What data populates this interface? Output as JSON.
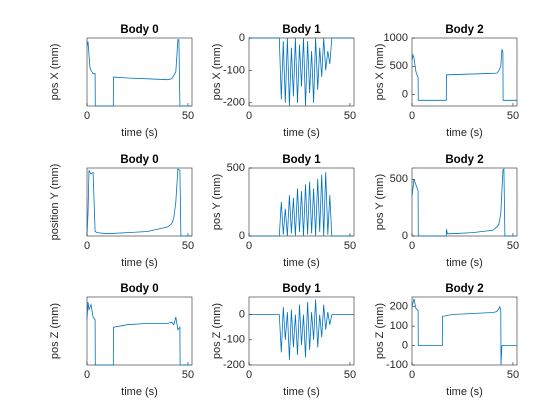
{
  "chart_data": [
    {
      "type": "line",
      "title": "Body 0",
      "x_label": "time (s)",
      "y_label": "pos X (mm)",
      "xlim": [
        0,
        52
      ],
      "xticks": [
        0,
        50
      ],
      "ylim": [
        0,
        800
      ],
      "color": "#0072bd",
      "x": [
        0,
        0.5,
        1,
        1.5,
        2,
        3,
        4,
        4.1,
        13,
        13.1,
        20,
        30,
        40,
        42,
        44,
        45,
        45.5,
        46,
        52
      ],
      "values": [
        700,
        760,
        600,
        450,
        420,
        380,
        380,
        0,
        0,
        340,
        330,
        320,
        310,
        320,
        400,
        780,
        780,
        0,
        0
      ]
    },
    {
      "type": "line",
      "title": "Body 1",
      "x_label": "time (s)",
      "y_label": "pos X (mm)",
      "xlim": [
        0,
        52
      ],
      "xticks": [
        0,
        50
      ],
      "ylim": [
        -210,
        0
      ],
      "yticks": [
        -200,
        -100,
        0
      ],
      "color": "#0072bd",
      "x": [
        0,
        15,
        16,
        17,
        18,
        19,
        20,
        21,
        22,
        23,
        24,
        25,
        26,
        27,
        28,
        29,
        30,
        31,
        32,
        33,
        34,
        35,
        36,
        37,
        38,
        39,
        40,
        41,
        52
      ],
      "values": [
        0,
        0,
        -190,
        -10,
        -200,
        0,
        -210,
        -30,
        -180,
        0,
        -200,
        -20,
        -150,
        0,
        -210,
        -10,
        -170,
        -40,
        -200,
        0,
        -160,
        -30,
        -120,
        0,
        -100,
        -40,
        -80,
        0,
        0
      ]
    },
    {
      "type": "line",
      "title": "Body 2",
      "x_label": "time (s)",
      "y_label": "pos X (mm)",
      "xlim": [
        0,
        52
      ],
      "xticks": [
        0,
        50
      ],
      "ylim": [
        -200,
        1000
      ],
      "yticks": [
        0,
        500,
        1000
      ],
      "color": "#0072bd",
      "x": [
        0,
        0.5,
        1,
        2,
        3,
        3.1,
        17,
        17.1,
        25,
        35,
        42,
        43,
        44,
        44.5,
        45,
        45.1,
        46,
        52
      ],
      "values": [
        600,
        700,
        650,
        400,
        300,
        -100,
        -100,
        350,
        360,
        370,
        380,
        420,
        500,
        800,
        750,
        -100,
        -100,
        -100
      ]
    },
    {
      "type": "line",
      "title": "Body 0",
      "x_label": "time (s)",
      "y_label": "position Y (mm)",
      "xlim": [
        0,
        52
      ],
      "xticks": [
        0,
        50
      ],
      "ylim": [
        0,
        600
      ],
      "color": "#0072bd",
      "x": [
        0,
        0.5,
        1,
        1.5,
        2,
        3,
        4,
        5,
        10,
        20,
        30,
        40,
        42,
        43,
        44,
        45,
        46,
        46.5,
        52
      ],
      "values": [
        0,
        200,
        580,
        560,
        550,
        560,
        40,
        30,
        20,
        30,
        40,
        80,
        110,
        160,
        300,
        590,
        580,
        0,
        0
      ]
    },
    {
      "type": "line",
      "title": "Body 1",
      "x_label": "time (s)",
      "y_label": "pos Y (mm)",
      "xlim": [
        0,
        52
      ],
      "xticks": [
        0,
        50
      ],
      "ylim": [
        0,
        500
      ],
      "yticks": [
        0,
        500
      ],
      "color": "#0072bd",
      "x": [
        0,
        15,
        16,
        17,
        18,
        19,
        20,
        21,
        22,
        23,
        24,
        25,
        26,
        27,
        28,
        29,
        30,
        31,
        32,
        33,
        34,
        35,
        36,
        37,
        38,
        39,
        40,
        41,
        52
      ],
      "values": [
        0,
        0,
        250,
        10,
        200,
        0,
        300,
        20,
        280,
        0,
        350,
        30,
        330,
        0,
        380,
        10,
        400,
        20,
        350,
        0,
        420,
        30,
        450,
        0,
        470,
        10,
        300,
        0,
        0
      ]
    },
    {
      "type": "line",
      "title": "Body 2",
      "x_label": "time (s)",
      "y_label": "pos Y (mm)",
      "xlim": [
        0,
        52
      ],
      "xticks": [
        0,
        50
      ],
      "ylim": [
        0,
        600
      ],
      "yticks": [
        0,
        500
      ],
      "color": "#0072bd",
      "x": [
        0,
        1,
        2,
        3,
        3.1,
        17,
        17.1,
        17.5,
        20,
        30,
        40,
        42,
        43,
        44,
        45,
        45.5,
        46,
        52
      ],
      "values": [
        350,
        500,
        450,
        400,
        0,
        0,
        60,
        20,
        20,
        30,
        50,
        80,
        100,
        200,
        580,
        590,
        0,
        0
      ]
    },
    {
      "type": "line",
      "title": "Body 0",
      "x_label": "time (s)",
      "y_label": "pos Z (mm)",
      "xlim": [
        0,
        52
      ],
      "xticks": [
        0,
        50
      ],
      "ylim": [
        0,
        270
      ],
      "color": "#0072bd",
      "x": [
        0,
        0.5,
        1,
        2,
        3,
        4,
        4.1,
        13,
        13.1,
        20,
        30,
        40,
        42,
        43,
        44,
        45,
        46,
        46.1,
        52
      ],
      "values": [
        180,
        250,
        220,
        240,
        190,
        180,
        0,
        0,
        150,
        160,
        165,
        165,
        170,
        160,
        190,
        140,
        150,
        0,
        0
      ]
    },
    {
      "type": "line",
      "title": "Body 1",
      "x_label": "time (s)",
      "y_label": "pos Z (mm)",
      "xlim": [
        0,
        52
      ],
      "xticks": [
        0,
        50
      ],
      "ylim": [
        -200,
        70
      ],
      "yticks": [
        -200,
        -100,
        0
      ],
      "color": "#0072bd",
      "x": [
        0,
        15,
        16,
        17,
        18,
        19,
        20,
        21,
        22,
        23,
        24,
        25,
        26,
        27,
        28,
        29,
        30,
        31,
        32,
        33,
        34,
        35,
        36,
        37,
        38,
        39,
        40,
        41,
        52
      ],
      "values": [
        0,
        0,
        -150,
        30,
        -100,
        10,
        -180,
        20,
        -130,
        0,
        -160,
        40,
        -120,
        0,
        -170,
        50,
        -140,
        10,
        -100,
        60,
        -130,
        0,
        -90,
        40,
        -60,
        10,
        -40,
        0,
        0
      ]
    },
    {
      "type": "line",
      "title": "Body 2",
      "x_label": "time (s)",
      "y_label": "pos Z (mm)",
      "xlim": [
        0,
        52
      ],
      "xticks": [
        0,
        50
      ],
      "ylim": [
        -100,
        250
      ],
      "yticks": [
        -100,
        0,
        100,
        200
      ],
      "color": "#0072bd",
      "x": [
        0,
        1,
        2,
        3,
        3.1,
        15,
        15.1,
        20,
        30,
        40,
        42,
        43,
        43.5,
        44,
        44.1,
        44.5,
        52
      ],
      "values": [
        200,
        240,
        190,
        180,
        0,
        0,
        150,
        160,
        165,
        170,
        175,
        190,
        200,
        180,
        -100,
        0,
        0
      ]
    }
  ]
}
